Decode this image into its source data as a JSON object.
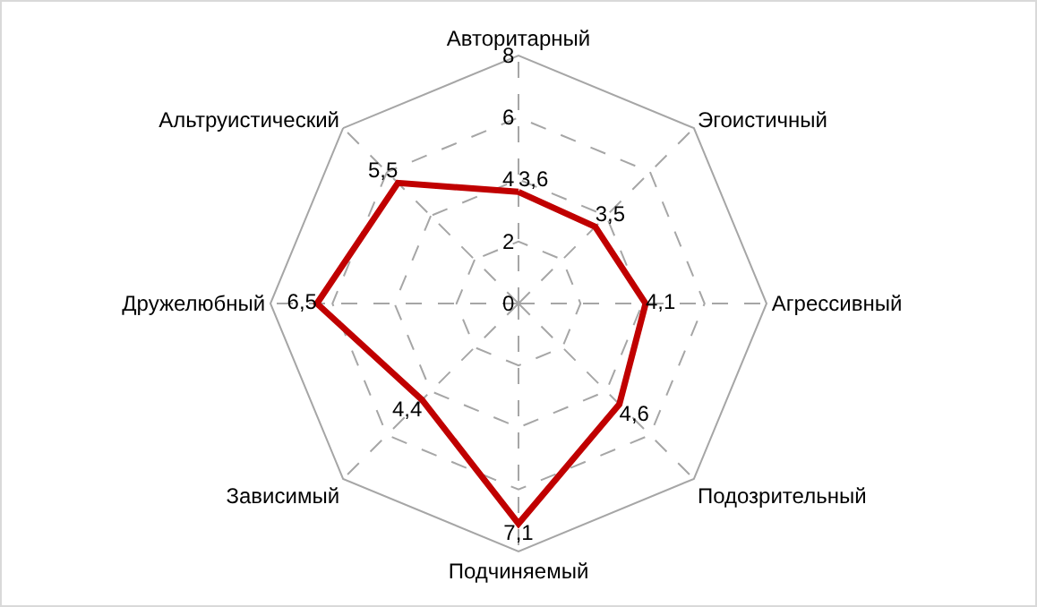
{
  "chart_data": {
    "type": "radar",
    "categories": [
      "Авторитарный",
      "Эгоистичный",
      "Агрессивный",
      "Подозрительный",
      "Подчиняемый",
      "Зависимый",
      "Дружелюбный",
      "Альтруистический"
    ],
    "series": [
      {
        "color": "#c00000",
        "values": [
          3.6,
          3.5,
          4.1,
          4.6,
          7.1,
          4.4,
          6.5,
          5.5
        ],
        "value_labels": [
          "3,6",
          "3,5",
          "4,1",
          "4,6",
          "7,1",
          "4,4",
          "6,5",
          "5,5"
        ]
      }
    ],
    "ylim": [
      0,
      8
    ],
    "yticks": [
      0,
      2,
      4,
      6,
      8
    ],
    "grid": true,
    "legend": false,
    "marker": "none",
    "line_style": "solid"
  }
}
